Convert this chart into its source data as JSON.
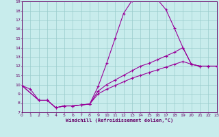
{
  "xlabel": "Windchill (Refroidissement éolien,°C)",
  "bg_color": "#c8ecec",
  "line_color": "#990099",
  "grid_color": "#99cccc",
  "axis_label_color": "#660066",
  "xlim": [
    0,
    23
  ],
  "ylim": [
    7,
    19
  ],
  "xticks": [
    0,
    1,
    2,
    3,
    4,
    5,
    6,
    7,
    8,
    9,
    10,
    11,
    12,
    13,
    14,
    15,
    16,
    17,
    18,
    19,
    20,
    21,
    22,
    23
  ],
  "yticks": [
    7,
    8,
    9,
    10,
    11,
    12,
    13,
    14,
    15,
    16,
    17,
    18,
    19
  ],
  "line1_x": [
    0,
    1,
    2,
    3,
    4,
    5,
    6,
    7,
    8,
    9,
    10,
    11,
    12,
    13,
    14,
    15,
    16,
    17,
    18,
    19,
    20,
    21,
    22,
    23
  ],
  "line1_y": [
    9.9,
    9.5,
    8.3,
    8.3,
    7.5,
    7.7,
    7.7,
    7.8,
    7.9,
    9.8,
    12.3,
    15.0,
    17.7,
    19.1,
    19.3,
    19.2,
    19.2,
    18.1,
    16.1,
    14.0,
    12.2,
    12.0,
    12.0,
    12.0
  ],
  "line2_x": [
    0,
    2,
    3,
    4,
    5,
    6,
    7,
    8,
    9,
    10,
    11,
    12,
    13,
    14,
    15,
    16,
    17,
    18,
    19,
    20,
    21,
    22,
    23
  ],
  "line2_y": [
    9.9,
    8.3,
    8.3,
    7.5,
    7.7,
    7.7,
    7.8,
    7.9,
    9.3,
    10.0,
    10.5,
    11.0,
    11.5,
    12.0,
    12.3,
    12.7,
    13.1,
    13.5,
    14.0,
    12.2,
    12.0,
    12.0,
    12.0
  ],
  "line3_x": [
    0,
    2,
    3,
    4,
    5,
    6,
    7,
    8,
    9,
    10,
    11,
    12,
    13,
    14,
    15,
    16,
    17,
    18,
    19,
    20,
    21,
    22,
    23
  ],
  "line3_y": [
    9.9,
    8.3,
    8.3,
    7.5,
    7.7,
    7.7,
    7.8,
    7.9,
    9.0,
    9.5,
    9.9,
    10.3,
    10.7,
    11.0,
    11.3,
    11.6,
    11.9,
    12.2,
    12.5,
    12.2,
    12.0,
    12.0,
    12.0
  ]
}
